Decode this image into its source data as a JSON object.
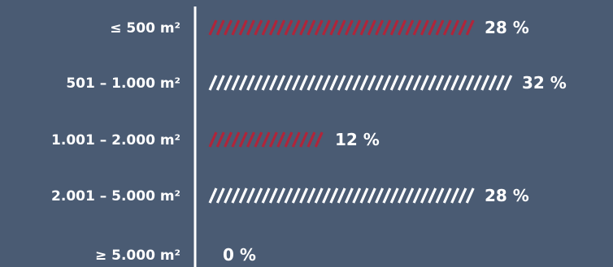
{
  "chart_data": {
    "type": "bar",
    "orientation": "horizontal",
    "categories": [
      "≤ 500 m²",
      "501 – 1.000 m²",
      "1.001 – 2.000 m²",
      "2.001 – 5.000 m²",
      "≥ 5.000 m²"
    ],
    "values": [
      28,
      32,
      12,
      28,
      0
    ],
    "value_labels": [
      "28 %",
      "32 %",
      "12 %",
      "28 %",
      "0 %"
    ],
    "bar_colors": [
      "#b0253a",
      "#ffffff",
      "#b0253a",
      "#ffffff",
      "#ffffff"
    ],
    "xlim": [
      0,
      32
    ],
    "bar_style": "hatched",
    "grid": false,
    "legend": "none"
  },
  "colors": {
    "background": "#4a5b73",
    "axis": "#ffffff",
    "text": "#ffffff",
    "highlight": "#b0253a"
  }
}
